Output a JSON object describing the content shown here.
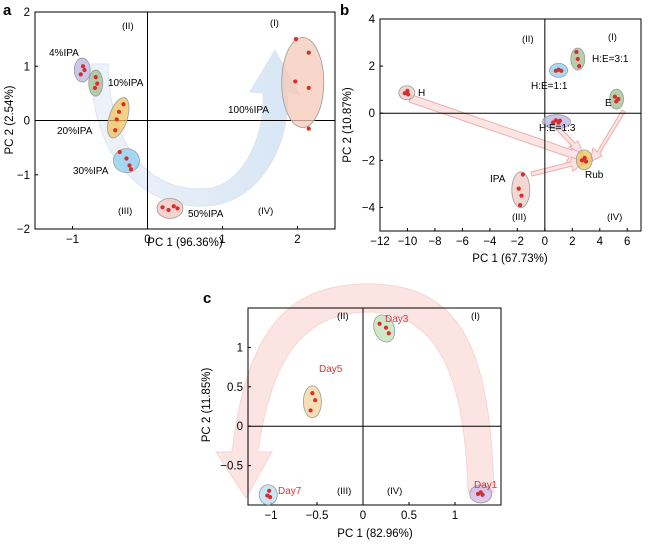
{
  "chart_data": [
    {
      "panel": "a",
      "type": "scatter",
      "xlabel": "PC 1 (96.36%)",
      "ylabel": "PC 2 (2.54%)",
      "xlim": [
        -1.5,
        2.5
      ],
      "ylim": [
        -2,
        2
      ],
      "xticks": [
        -1,
        0,
        1,
        2
      ],
      "xtick_labels": [
        "−1",
        "0",
        "1",
        "2"
      ],
      "yticks": [
        -2,
        -1,
        0,
        1,
        2
      ],
      "ytick_labels": [
        "−2",
        "−1",
        "0",
        "1",
        "2"
      ],
      "quadrants": [
        "(I)",
        "(II)",
        "(III)",
        "(IV)"
      ],
      "groups": [
        {
          "name": "4%IPA",
          "color": "#b9b4e3",
          "points": [
            [
              -0.86,
              1.0
            ],
            [
              -0.84,
              0.93
            ],
            [
              -0.89,
              0.85
            ]
          ]
        },
        {
          "name": "10%IPA",
          "color": "#9fbf8f",
          "points": [
            [
              -0.69,
              0.8
            ],
            [
              -0.67,
              0.68
            ],
            [
              -0.7,
              0.6
            ]
          ]
        },
        {
          "name": "20%IPA",
          "color": "#f2c15a",
          "points": [
            [
              -0.32,
              0.3
            ],
            [
              -0.38,
              0.16
            ],
            [
              -0.41,
              0.02
            ],
            [
              -0.43,
              -0.18
            ]
          ]
        },
        {
          "name": "30%IPA",
          "color": "#8ccdf0",
          "points": [
            [
              -0.37,
              -0.58
            ],
            [
              -0.28,
              -0.7
            ],
            [
              -0.24,
              -0.83
            ],
            [
              -0.22,
              -0.9
            ]
          ]
        },
        {
          "name": "50%IPA",
          "color": "#f3c6c0",
          "points": [
            [
              0.2,
              -1.6
            ],
            [
              0.28,
              -1.65
            ],
            [
              0.35,
              -1.58
            ],
            [
              0.4,
              -1.62
            ]
          ]
        },
        {
          "name": "100%IPA",
          "color": "#f5c8b8",
          "points": [
            [
              1.98,
              1.5
            ],
            [
              2.15,
              1.25
            ],
            [
              1.97,
              0.72
            ],
            [
              2.15,
              0.6
            ],
            [
              2.15,
              -0.15
            ]
          ]
        }
      ]
    },
    {
      "panel": "b",
      "type": "scatter",
      "xlabel": "PC 1 (67.73%)",
      "ylabel": "PC 2 (10.87%)",
      "xlim": [
        -12,
        7
      ],
      "ylim": [
        -5,
        4
      ],
      "xticks": [
        -12,
        -10,
        -8,
        -6,
        -4,
        -2,
        0,
        2,
        4,
        6
      ],
      "xtick_labels": [
        "−12",
        "−10",
        "−8",
        "−6",
        "−4",
        "−2",
        "0",
        "2",
        "4",
        "6"
      ],
      "yticks": [
        -4,
        -2,
        0,
        2,
        4
      ],
      "ytick_labels": [
        "−4",
        "−2",
        "0",
        "2",
        "4"
      ],
      "quadrants": [
        "(I)",
        "(II)",
        "(III)",
        "(IV)"
      ],
      "groups": [
        {
          "name": "H",
          "color": "#f0c9c4",
          "points": [
            [
              -10.2,
              0.85
            ],
            [
              -10.0,
              0.95
            ],
            [
              -9.95,
              0.8
            ]
          ]
        },
        {
          "name": "H:E=3:1",
          "color": "#9fbf8f",
          "points": [
            [
              2.3,
              2.6
            ],
            [
              2.4,
              2.3
            ],
            [
              2.5,
              2.0
            ]
          ]
        },
        {
          "name": "H:E=1:1",
          "color": "#8ccdf0",
          "points": [
            [
              0.8,
              1.8
            ],
            [
              1.0,
              1.85
            ],
            [
              1.2,
              1.8
            ]
          ]
        },
        {
          "name": "E",
          "color": "#9fbf8f",
          "points": [
            [
              5.1,
              0.7
            ],
            [
              5.2,
              0.5
            ],
            [
              5.35,
              0.6
            ]
          ]
        },
        {
          "name": "H:E=1:3",
          "color": "#b9b4e3",
          "points": [
            [
              0.6,
              -0.4
            ],
            [
              0.8,
              -0.3
            ],
            [
              1.0,
              -0.4
            ],
            [
              1.1,
              -0.32
            ]
          ]
        },
        {
          "name": "Rub",
          "color": "#f2c15a",
          "points": [
            [
              2.7,
              -2.0
            ],
            [
              2.9,
              -1.9
            ],
            [
              3.0,
              -2.05
            ]
          ]
        },
        {
          "name": "IPA",
          "color": "#f0c9c4",
          "points": [
            [
              -1.6,
              -2.6
            ],
            [
              -1.9,
              -3.2
            ],
            [
              -1.7,
              -3.5
            ],
            [
              -1.8,
              -3.9
            ]
          ]
        }
      ]
    },
    {
      "panel": "c",
      "type": "scatter",
      "xlabel": "PC 1 (82.96%)",
      "ylabel": "PC 2 (11.85%)",
      "xlim": [
        -1.25,
        1.5
      ],
      "ylim": [
        -1.0,
        1.5
      ],
      "xticks": [
        -1,
        -0.5,
        0,
        0.5,
        1
      ],
      "xtick_labels": [
        "−1",
        "−0.5",
        "0",
        "0.5",
        "1"
      ],
      "yticks": [
        -0.5,
        0,
        0.5,
        1
      ],
      "ytick_labels": [
        "−0.5",
        "0",
        "0.5",
        "1"
      ],
      "quadrants": [
        "(I)",
        "(II)",
        "(III)",
        "(IV)"
      ],
      "groups": [
        {
          "name": "Day3",
          "color": "#bfe0b5",
          "points": [
            [
              0.18,
              1.3
            ],
            [
              0.25,
              1.25
            ],
            [
              0.28,
              1.18
            ]
          ]
        },
        {
          "name": "Day5",
          "color": "#f5d49a",
          "points": [
            [
              -0.55,
              0.42
            ],
            [
              -0.52,
              0.33
            ],
            [
              -0.57,
              0.2
            ]
          ]
        },
        {
          "name": "Day7",
          "color": "#b8dcf0",
          "points": [
            [
              -1.02,
              -0.82
            ],
            [
              -1.04,
              -0.88
            ],
            [
              -1.01,
              -0.9
            ]
          ]
        },
        {
          "name": "Day1",
          "color": "#cdb8e8",
          "points": [
            [
              1.25,
              -0.86
            ],
            [
              1.28,
              -0.84
            ],
            [
              1.3,
              -0.87
            ]
          ]
        }
      ]
    }
  ]
}
